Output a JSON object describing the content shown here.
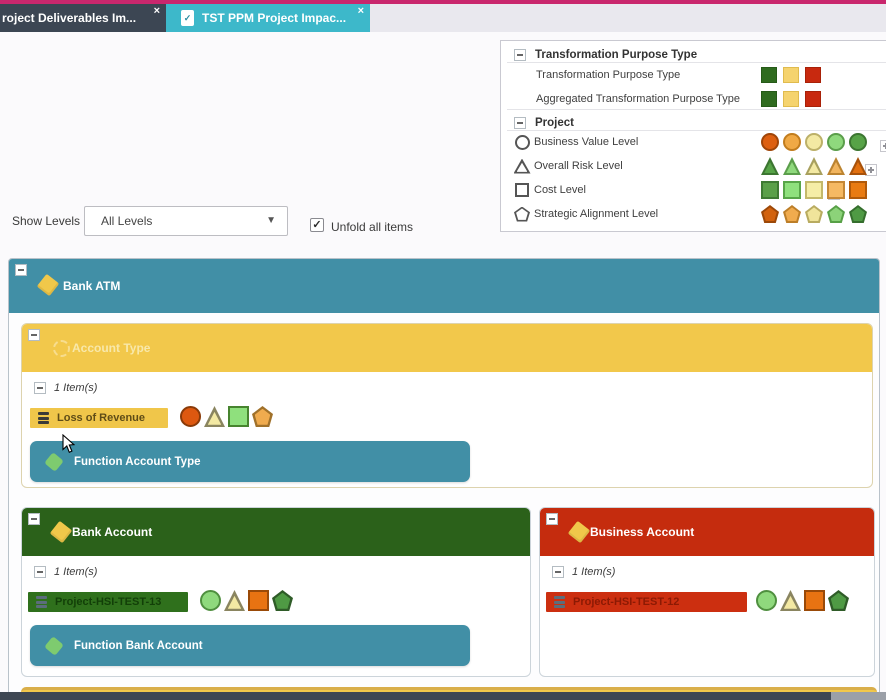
{
  "icons": {
    "close": "×",
    "check": "✓",
    "dropdown_arrow": "▼"
  },
  "colors": {
    "top_strip": "#c9276d",
    "active_tab": "#3db8ca",
    "board_header": "#418fa6",
    "function_bar": "#418fa6"
  },
  "tabs": [
    {
      "label": "roject Deliverables Im..."
    },
    {
      "label": "TST PPM Project Impac..."
    }
  ],
  "legend": {
    "sections": [
      {
        "title": "Transformation Purpose Type",
        "rows": [
          {
            "label": "Transformation Purpose Type",
            "swatches": [
              {
                "shape": "square",
                "fill": "#2f6b1f",
                "border": "#265a18"
              },
              {
                "shape": "square",
                "fill": "#f5d36e",
                "border": "#e0bb4e"
              },
              {
                "shape": "square",
                "fill": "#c8290f",
                "border": "#a82108"
              }
            ]
          },
          {
            "label": "Aggregated Transformation Purpose Type",
            "swatches": [
              {
                "shape": "square",
                "fill": "#2f6b1f",
                "border": "#265a18"
              },
              {
                "shape": "square",
                "fill": "#f5d36e",
                "border": "#e0bb4e"
              },
              {
                "shape": "square",
                "fill": "#c8290f",
                "border": "#a82108"
              }
            ]
          }
        ]
      },
      {
        "title": "Project",
        "rows": [
          {
            "label": "Business Value Level",
            "icon": "circle-outline",
            "swatches": [
              {
                "shape": "circle",
                "fill": "#dd5f10",
                "border": "#a04508"
              },
              {
                "shape": "circle",
                "fill": "#f0a945",
                "border": "#c27d1e"
              },
              {
                "shape": "circle",
                "fill": "#f3e9a3",
                "border": "#bcb068"
              },
              {
                "shape": "circle",
                "fill": "#8fd97d",
                "border": "#5b9e4b"
              },
              {
                "shape": "circle",
                "fill": "#57a347",
                "border": "#3c7631"
              }
            ]
          },
          {
            "label": "Overall Risk Level",
            "icon": "triangle-outline",
            "swatches": [
              {
                "shape": "triangle",
                "fill": "#57a347",
                "border": "#3c7631"
              },
              {
                "shape": "triangle",
                "fill": "#8fd97d",
                "border": "#5b9e4b"
              },
              {
                "shape": "triangle",
                "fill": "#f3e9a3",
                "border": "#a8a05e"
              },
              {
                "shape": "triangle",
                "fill": "#f2b55e",
                "border": "#bc8430"
              },
              {
                "shape": "triangle",
                "fill": "#e2700f",
                "border": "#a8520a"
              }
            ]
          },
          {
            "label": "Cost Level",
            "icon": "square-outline",
            "swatches": [
              {
                "shape": "square",
                "fill": "#5ba04a",
                "border": "#3f7a34"
              },
              {
                "shape": "square",
                "fill": "#8fe07d",
                "border": "#58a548"
              },
              {
                "shape": "square",
                "fill": "#f5eda6",
                "border": "#c4b96a"
              },
              {
                "shape": "square",
                "fill": "#f5b963",
                "border": "#c58836"
              },
              {
                "shape": "square",
                "fill": "#e87b12",
                "border": "#b05a0a"
              }
            ]
          },
          {
            "label": "Strategic Alignment Level",
            "icon": "pentagon-outline",
            "swatches": [
              {
                "shape": "pentagon",
                "fill": "#d2620e",
                "border": "#9c4808"
              },
              {
                "shape": "pentagon",
                "fill": "#f0ab4e",
                "border": "#bc7e28"
              },
              {
                "shape": "pentagon",
                "fill": "#f0e49b",
                "border": "#b8ab60"
              },
              {
                "shape": "pentagon",
                "fill": "#8cd379",
                "border": "#57a046"
              },
              {
                "shape": "pentagon",
                "fill": "#4f9a44",
                "border": "#356e2d"
              }
            ]
          }
        ]
      }
    ]
  },
  "controls": {
    "show_levels_label": "Show Levels",
    "level_select_value": "All Levels",
    "unfold_checkbox_label": "Unfold all items",
    "unfold_checked": true
  },
  "board": {
    "root": {
      "title": "Bank ATM",
      "header_color": "#418fa6"
    },
    "cards": [
      {
        "title": "Account Type",
        "header_color": "#f2c84b",
        "title_color": "#f8e8aa",
        "items_count_label": "1 Item(s)",
        "items": [
          {
            "label": "Loss of Revenue",
            "bg": "#f0c64a",
            "text_color": "#5f4c17",
            "icon_color": "#3a3a38",
            "shapes": [
              {
                "shape": "circle",
                "fill": "#dd5810",
                "border": "#8a3a08"
              },
              {
                "shape": "triangle",
                "fill": "#f3e9a3",
                "border": "#8a8560"
              },
              {
                "shape": "square",
                "fill": "#8fe07d",
                "border": "#47842f"
              },
              {
                "shape": "pentagon",
                "fill": "#f0ab4e",
                "border": "#a0712a"
              }
            ]
          }
        ],
        "function_bar": {
          "label": "Function Account Type"
        }
      },
      {
        "title": "Bank Account",
        "header_color": "#2b611a",
        "title_color": "#ffffff",
        "items_count_label": "1 Item(s)",
        "items": [
          {
            "label": "Project-HSI-TEST-13",
            "bg": "#2f701c",
            "text_color": "#123f08",
            "icon_color": "#5b6d7c",
            "shapes": [
              {
                "shape": "circle",
                "fill": "#8fd97d",
                "border": "#4f8f3f"
              },
              {
                "shape": "triangle",
                "fill": "#f3e9a3",
                "border": "#8a8560"
              },
              {
                "shape": "square",
                "fill": "#e87312",
                "border": "#9a4a08"
              },
              {
                "shape": "pentagon",
                "fill": "#4f9a44",
                "border": "#2f5c28"
              }
            ]
          }
        ],
        "function_bar": {
          "label": "Function Bank Account"
        }
      },
      {
        "title": "Business Account",
        "header_color": "#c52c0e",
        "title_color": "#ffffff",
        "items_count_label": "1 Item(s)",
        "items": [
          {
            "label": "Project-HSI-TEST-12",
            "bg": "#cc2f10",
            "text_color": "#8c1a04",
            "icon_color": "#5b6d7c",
            "shapes": [
              {
                "shape": "circle",
                "fill": "#8fd97d",
                "border": "#4f8f3f"
              },
              {
                "shape": "triangle",
                "fill": "#f3e9a3",
                "border": "#8a8560"
              },
              {
                "shape": "square",
                "fill": "#e87312",
                "border": "#9a4a08"
              },
              {
                "shape": "pentagon",
                "fill": "#4f9a44",
                "border": "#2f5c28"
              }
            ]
          }
        ],
        "function_bar": null
      }
    ]
  }
}
